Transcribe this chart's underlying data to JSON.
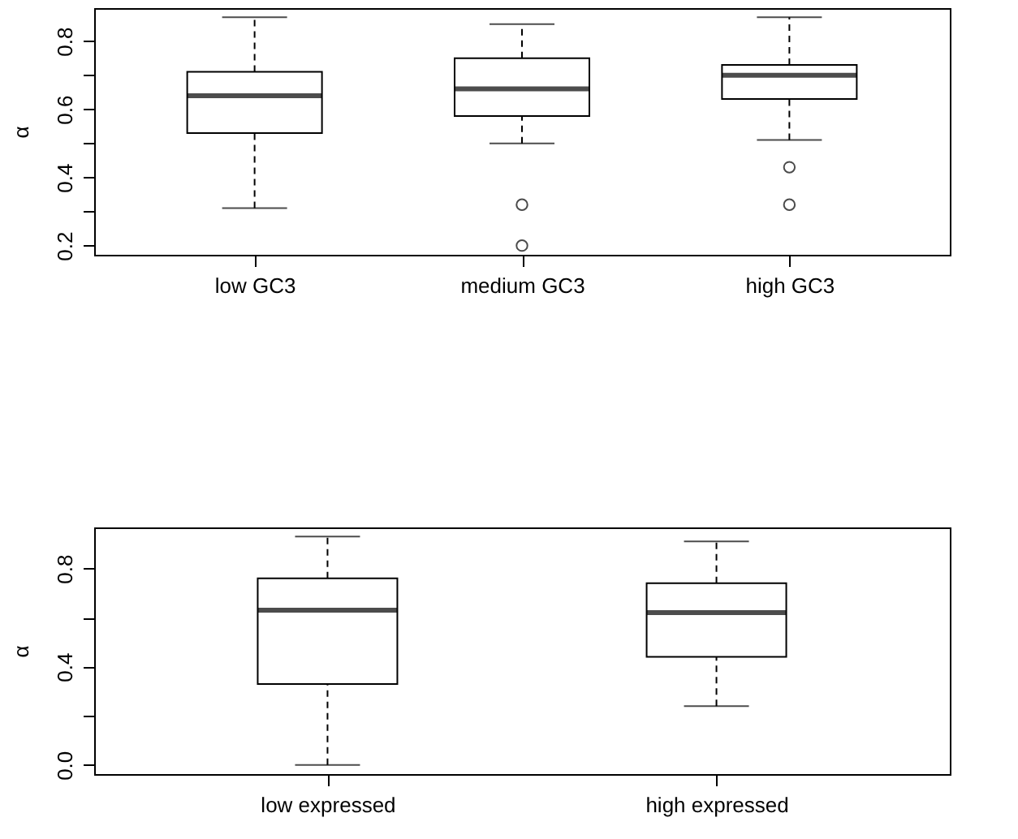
{
  "chart_data": [
    {
      "type": "box",
      "ylabel": "α",
      "categories": [
        "low GC3",
        "medium GC3",
        "high GC3"
      ],
      "boxes": [
        {
          "low": 0.31,
          "q1": 0.53,
          "median": 0.64,
          "q3": 0.71,
          "high": 0.87
        },
        {
          "low": 0.5,
          "q1": 0.58,
          "median": 0.66,
          "q3": 0.75,
          "high": 0.85,
          "outliers": [
            0.32,
            0.2
          ]
        },
        {
          "low": 0.51,
          "q1": 0.63,
          "median": 0.7,
          "q3": 0.73,
          "high": 0.87,
          "outliers": [
            0.43,
            0.32
          ]
        }
      ],
      "ylim": [
        0.173,
        0.897
      ],
      "yticks": [
        0.2,
        {
          "value": 0.3,
          "label": null
        },
        0.4,
        {
          "value": 0.5,
          "label": null
        },
        0.6,
        {
          "value": 0.7,
          "label": null
        },
        0.8
      ],
      "grid": false
    },
    {
      "type": "box",
      "ylabel": "α",
      "categories": [
        "low expressed",
        "high expressed"
      ],
      "boxes": [
        {
          "low": 0.0,
          "q1": 0.33,
          "median": 0.63,
          "q3": 0.76,
          "high": 0.93
        },
        {
          "low": 0.24,
          "q1": 0.44,
          "median": 0.62,
          "q3": 0.74,
          "high": 0.91
        }
      ],
      "ylim": [
        -0.037,
        0.967
      ],
      "yticks": [
        {
          "value": 0.0,
          "label": "0.0"
        },
        {
          "value": 0.2,
          "label": null
        },
        0.4,
        {
          "value": 0.6,
          "label": null
        },
        0.8
      ],
      "grid": false
    }
  ]
}
